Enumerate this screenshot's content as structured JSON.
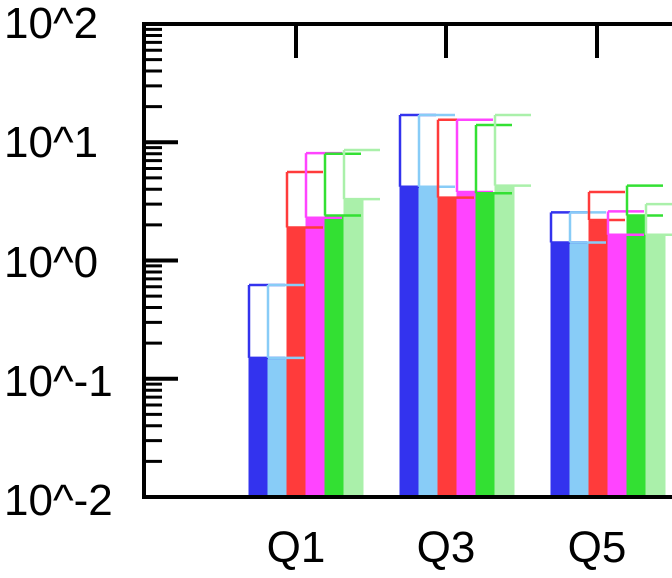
{
  "chart_data": {
    "type": "bar",
    "yscale": "log",
    "ylim": [
      0.01,
      100
    ],
    "y_tick_labels": [
      "10^-2",
      "10^-1",
      "10^0",
      "10^1",
      "10^2"
    ],
    "categories": [
      "Q1",
      "Q3",
      "Q5"
    ],
    "category_labels_visible": [
      "Q1",
      "Q3",
      "Q5"
    ],
    "error_bars": "upper",
    "series": [
      {
        "color": "#3333ee",
        "values": [
          0.15,
          4.2,
          1.42
        ],
        "upper": [
          0.62,
          17,
          2.55
        ]
      },
      {
        "color": "#88ccf7",
        "values": [
          0.15,
          4.2,
          1.42
        ],
        "upper": [
          0.62,
          17,
          2.55
        ]
      },
      {
        "color": "#ff3b3b",
        "values": [
          1.9,
          3.4,
          2.2
        ],
        "upper": [
          5.6,
          15.5,
          3.8
        ]
      },
      {
        "color": "#ff44ff",
        "values": [
          2.3,
          3.8,
          1.65
        ],
        "upper": [
          8.1,
          15.5,
          2.6
        ]
      },
      {
        "color": "#33e033",
        "values": [
          2.4,
          3.7,
          2.4
        ],
        "upper": [
          8.0,
          14,
          4.3
        ]
      },
      {
        "color": "#aaf0aa",
        "values": [
          3.3,
          4.3,
          1.65
        ],
        "upper": [
          8.6,
          17,
          3.0
        ]
      }
    ],
    "grid": false,
    "legend": "none"
  }
}
